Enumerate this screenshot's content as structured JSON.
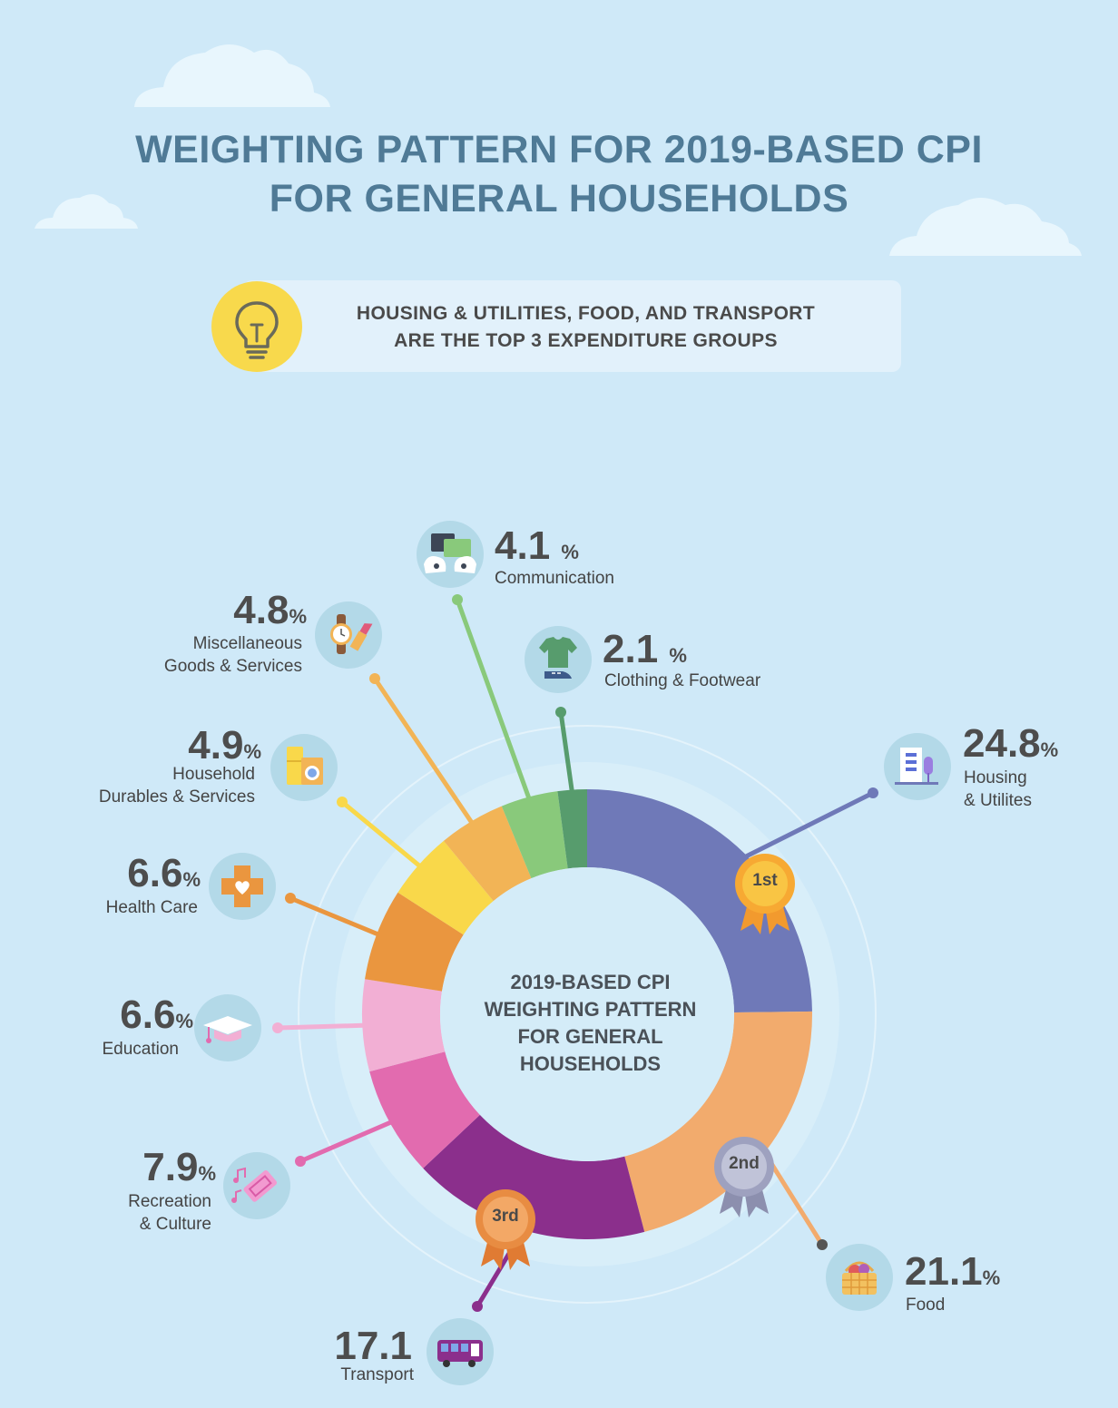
{
  "title_line1": "WEIGHTING PATTERN FOR 2019-BASED CPI",
  "title_line2": "FOR GENERAL HOUSEHOLDS",
  "insight_line1": "HOUSING & UTILITIES, FOOD, AND TRANSPORT",
  "insight_line2": "ARE THE TOP 3 EXPENDITURE GROUPS",
  "center": {
    "line1": "2019-BASED CPI",
    "line2": "WEIGHTING PATTERN",
    "line3": "FOR GENERAL",
    "line4": "HOUSEHOLDS"
  },
  "badges": {
    "first": "1st",
    "second": "2nd",
    "third": "3rd"
  },
  "chart_data": {
    "type": "pie",
    "title": "2019-BASED CPI WEIGHTING PATTERN FOR GENERAL HOUSEHOLDS",
    "unit": "%",
    "slices": [
      {
        "key": "housing",
        "value_text": "24.8",
        "value": 24.8,
        "pct": "%",
        "label_lines": [
          "Housing",
          "& Utilites"
        ],
        "color": "#6f79b8",
        "icon": "building-icon"
      },
      {
        "key": "food",
        "value_text": "21.1",
        "value": 21.1,
        "pct": "%",
        "label_lines": [
          "Food"
        ],
        "color": "#f2ab6d",
        "icon": "basket-icon"
      },
      {
        "key": "transport",
        "value_text": "17.1",
        "value": 17.1,
        "pct": "",
        "label_lines": [
          "Transport"
        ],
        "color": "#8b2f8c",
        "icon": "bus-icon"
      },
      {
        "key": "recreation",
        "value_text": "7.9",
        "value": 7.9,
        "pct": "%",
        "label_lines": [
          "Recreation",
          "& Culture"
        ],
        "color": "#e26baf",
        "icon": "ticket-icon"
      },
      {
        "key": "education",
        "value_text": "6.6",
        "value": 6.6,
        "pct": "%",
        "label_lines": [
          "Education"
        ],
        "color": "#f2afd4",
        "icon": "graduation-cap-icon"
      },
      {
        "key": "health",
        "value_text": "6.6",
        "value": 6.6,
        "pct": "%",
        "label_lines": [
          "Health Care"
        ],
        "color": "#ea963f",
        "icon": "health-cross-icon"
      },
      {
        "key": "durables",
        "value_text": "4.9",
        "value": 4.9,
        "pct": "%",
        "label_lines": [
          "Household",
          "Durables & Services"
        ],
        "color": "#f9d84a",
        "icon": "appliances-icon"
      },
      {
        "key": "misc",
        "value_text": "4.8",
        "value": 4.8,
        "pct": "%",
        "label_lines": [
          "Miscellaneous",
          "Goods & Services"
        ],
        "color": "#f2b456",
        "icon": "watch-lipstick-icon"
      },
      {
        "key": "communication",
        "value_text": "4.1",
        "value": 4.1,
        "pct": "%",
        "label_lines": [
          "Communication"
        ],
        "color": "#89c97b",
        "icon": "chat-icon"
      },
      {
        "key": "clothing",
        "value_text": "2.1",
        "value": 2.1,
        "pct": "%",
        "label_lines": [
          "Clothing & Footwear"
        ],
        "color": "#579c6d",
        "icon": "tshirt-shoe-icon"
      }
    ]
  }
}
